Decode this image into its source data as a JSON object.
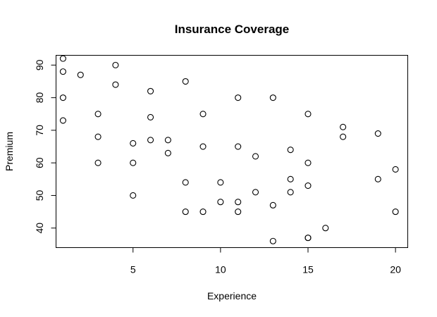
{
  "chart_data": {
    "type": "scatter",
    "title": "Insurance Coverage",
    "xlabel": "Experience",
    "ylabel": "Premium",
    "xlim": [
      0.6,
      20.7
    ],
    "ylim": [
      34,
      93
    ],
    "xticks": [
      5,
      10,
      15,
      20
    ],
    "yticks": [
      40,
      50,
      60,
      70,
      80,
      90
    ],
    "xtick_labels": [
      "5",
      "10",
      "15",
      "20"
    ],
    "ytick_labels": [
      "40",
      "50",
      "60",
      "70",
      "80",
      "90"
    ],
    "grid": false,
    "legend": "none",
    "marker": "open-circle",
    "points": [
      {
        "x": 1,
        "y": 92
      },
      {
        "x": 1,
        "y": 88
      },
      {
        "x": 1,
        "y": 80
      },
      {
        "x": 1,
        "y": 73
      },
      {
        "x": 2,
        "y": 87
      },
      {
        "x": 3,
        "y": 75
      },
      {
        "x": 3,
        "y": 68
      },
      {
        "x": 3,
        "y": 60
      },
      {
        "x": 4,
        "y": 90
      },
      {
        "x": 4,
        "y": 84
      },
      {
        "x": 5,
        "y": 66
      },
      {
        "x": 5,
        "y": 60
      },
      {
        "x": 5,
        "y": 50
      },
      {
        "x": 6,
        "y": 82
      },
      {
        "x": 6,
        "y": 74
      },
      {
        "x": 6,
        "y": 67
      },
      {
        "x": 7,
        "y": 67
      },
      {
        "x": 7,
        "y": 63
      },
      {
        "x": 8,
        "y": 85
      },
      {
        "x": 8,
        "y": 54
      },
      {
        "x": 8,
        "y": 45
      },
      {
        "x": 9,
        "y": 75
      },
      {
        "x": 9,
        "y": 65
      },
      {
        "x": 9,
        "y": 45
      },
      {
        "x": 10,
        "y": 54
      },
      {
        "x": 10,
        "y": 48
      },
      {
        "x": 11,
        "y": 80
      },
      {
        "x": 11,
        "y": 65
      },
      {
        "x": 11,
        "y": 48
      },
      {
        "x": 11,
        "y": 45
      },
      {
        "x": 12,
        "y": 62
      },
      {
        "x": 12,
        "y": 51
      },
      {
        "x": 13,
        "y": 80
      },
      {
        "x": 13,
        "y": 47
      },
      {
        "x": 13,
        "y": 36
      },
      {
        "x": 14,
        "y": 64
      },
      {
        "x": 14,
        "y": 55
      },
      {
        "x": 14,
        "y": 51
      },
      {
        "x": 15,
        "y": 75
      },
      {
        "x": 15,
        "y": 60
      },
      {
        "x": 15,
        "y": 53
      },
      {
        "x": 15,
        "y": 37
      },
      {
        "x": 15,
        "y": 37
      },
      {
        "x": 16,
        "y": 40
      },
      {
        "x": 17,
        "y": 71
      },
      {
        "x": 17,
        "y": 68
      },
      {
        "x": 19,
        "y": 69
      },
      {
        "x": 19,
        "y": 55
      },
      {
        "x": 20,
        "y": 58
      },
      {
        "x": 20,
        "y": 45
      }
    ]
  }
}
